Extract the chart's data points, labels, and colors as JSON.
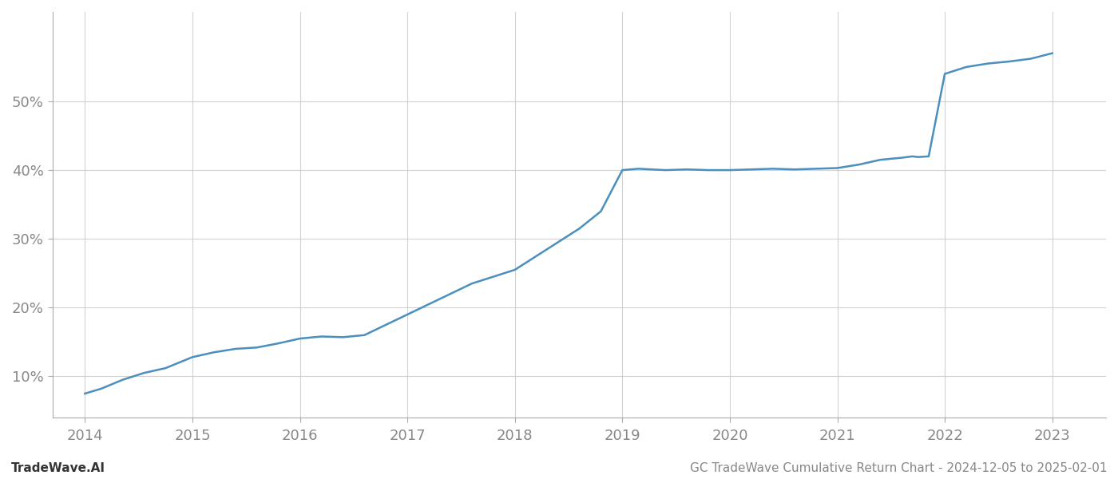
{
  "title": "GC TradeWave Cumulative Return Chart - 2024-12-05 to 2025-02-01",
  "watermark": "TradeWave.AI",
  "x_years": [
    2014,
    2015,
    2016,
    2017,
    2018,
    2019,
    2020,
    2021,
    2022,
    2023
  ],
  "line_color": "#4a8fbe",
  "line_width": 1.8,
  "background_color": "#ffffff",
  "grid_color": "#cccccc",
  "data_points": [
    [
      2014.0,
      7.5
    ],
    [
      2014.15,
      8.2
    ],
    [
      2014.35,
      9.5
    ],
    [
      2014.55,
      10.5
    ],
    [
      2014.75,
      11.2
    ],
    [
      2015.0,
      12.8
    ],
    [
      2015.2,
      13.5
    ],
    [
      2015.4,
      14.0
    ],
    [
      2015.6,
      14.2
    ],
    [
      2015.8,
      14.8
    ],
    [
      2016.0,
      15.5
    ],
    [
      2016.2,
      15.8
    ],
    [
      2016.4,
      15.7
    ],
    [
      2016.6,
      16.0
    ],
    [
      2016.8,
      17.5
    ],
    [
      2017.0,
      19.0
    ],
    [
      2017.2,
      20.5
    ],
    [
      2017.4,
      22.0
    ],
    [
      2017.6,
      23.5
    ],
    [
      2017.8,
      24.5
    ],
    [
      2018.0,
      25.5
    ],
    [
      2018.2,
      27.5
    ],
    [
      2018.4,
      29.5
    ],
    [
      2018.6,
      31.5
    ],
    [
      2018.8,
      34.0
    ],
    [
      2019.0,
      40.0
    ],
    [
      2019.15,
      40.2
    ],
    [
      2019.4,
      40.0
    ],
    [
      2019.6,
      40.1
    ],
    [
      2019.8,
      40.0
    ],
    [
      2020.0,
      40.0
    ],
    [
      2020.2,
      40.1
    ],
    [
      2020.4,
      40.2
    ],
    [
      2020.6,
      40.1
    ],
    [
      2020.8,
      40.2
    ],
    [
      2021.0,
      40.3
    ],
    [
      2021.2,
      40.8
    ],
    [
      2021.4,
      41.5
    ],
    [
      2021.6,
      41.8
    ],
    [
      2021.7,
      42.0
    ],
    [
      2021.75,
      41.9
    ],
    [
      2021.85,
      42.0
    ],
    [
      2022.0,
      54.0
    ],
    [
      2022.2,
      55.0
    ],
    [
      2022.4,
      55.5
    ],
    [
      2022.6,
      55.8
    ],
    [
      2022.8,
      56.2
    ],
    [
      2023.0,
      57.0
    ]
  ],
  "yticks": [
    10,
    20,
    30,
    40,
    50
  ],
  "ylim": [
    4,
    63
  ],
  "xlim": [
    2013.7,
    2023.5
  ],
  "tick_fontsize": 13,
  "label_fontsize": 11,
  "title_fontsize": 11
}
